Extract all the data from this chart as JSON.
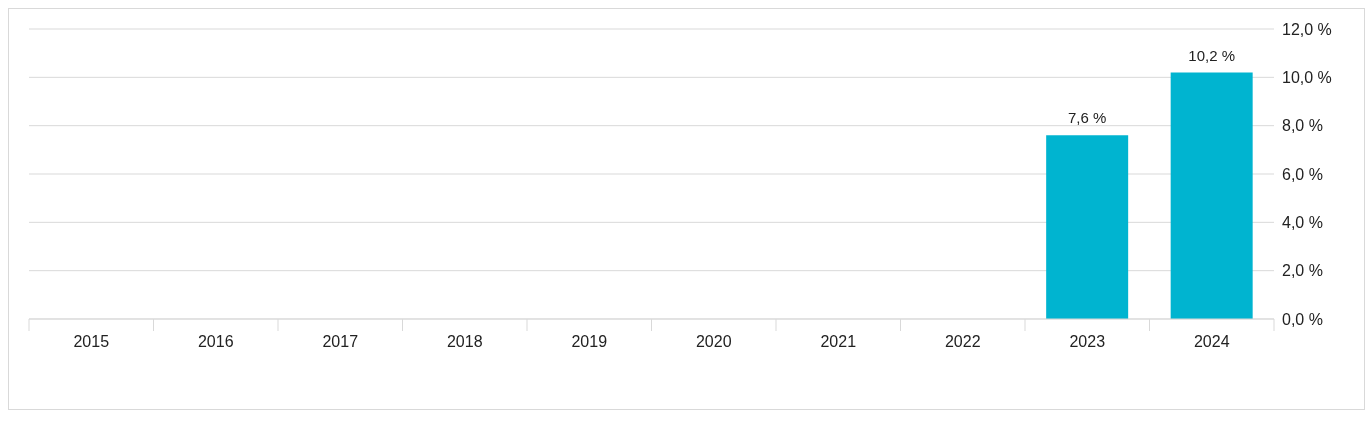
{
  "chart_data": {
    "type": "bar",
    "categories": [
      "2015",
      "2016",
      "2017",
      "2018",
      "2019",
      "2020",
      "2021",
      "2022",
      "2023",
      "2024"
    ],
    "series": [
      {
        "color": "#00b4d0",
        "values": [
          null,
          null,
          null,
          null,
          null,
          null,
          null,
          null,
          7.6,
          10.2
        ],
        "value_labels": [
          null,
          null,
          null,
          null,
          null,
          null,
          null,
          null,
          "7,6 %",
          "10,2 %"
        ]
      }
    ],
    "ylim": [
      0,
      12
    ],
    "yticks": [
      {
        "value": 0,
        "label": "0,0 %"
      },
      {
        "value": 2,
        "label": "2,0 %"
      },
      {
        "value": 4,
        "label": "4,0 %"
      },
      {
        "value": 6,
        "label": "6,0 %"
      },
      {
        "value": 8,
        "label": "8,0 %"
      },
      {
        "value": 10,
        "label": "10,0 %"
      },
      {
        "value": 12,
        "label": "12,0 %"
      }
    ],
    "grid": "y"
  }
}
